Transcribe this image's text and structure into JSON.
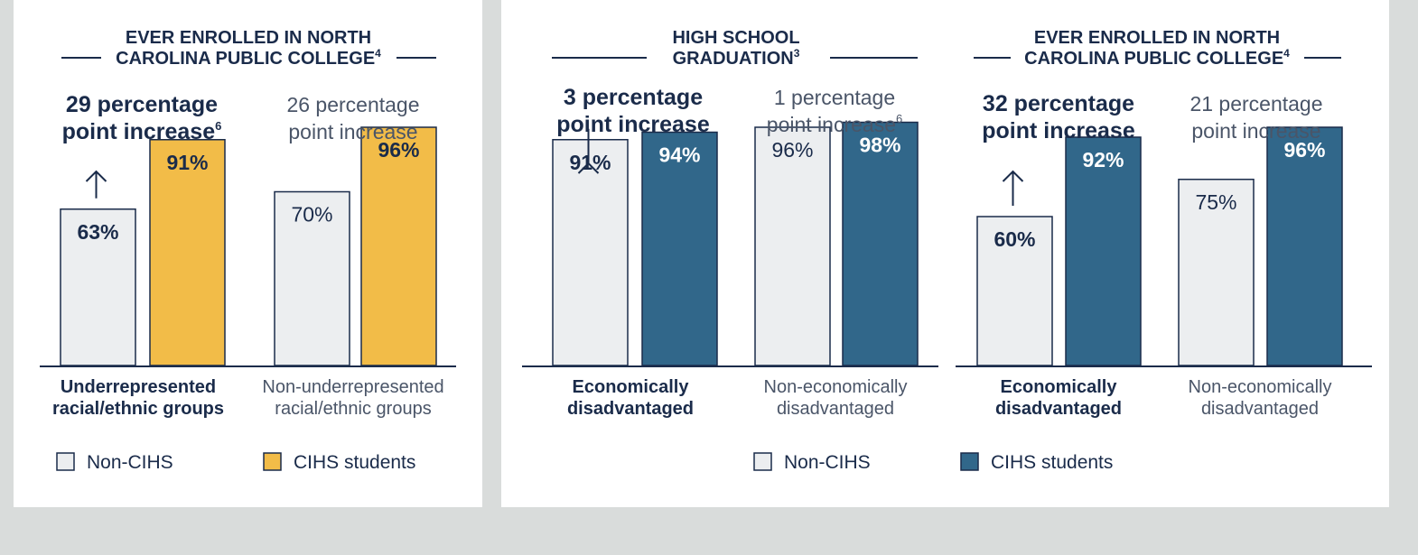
{
  "colors": {
    "navy": "#1a2b4a",
    "gray_text": "#4a5568",
    "light_bar": "#eceef0",
    "gold": "#f2bc48",
    "teal": "#31678a",
    "background": "#d9dcdb",
    "panel": "#ffffff"
  },
  "chart_data": [
    {
      "type": "bar",
      "title": [
        "EVER ENROLLED IN NORTH",
        "CAROLINA PUBLIC COLLEGE"
      ],
      "title_footnote": "4",
      "categories": [
        [
          "Underrepresented",
          "racial/ethnic groups"
        ],
        [
          "Non-underrepresented",
          "racial/ethnic groups"
        ]
      ],
      "category_bold": [
        true,
        false
      ],
      "series": [
        {
          "name": "Non-CIHS",
          "values": [
            63,
            70
          ]
        },
        {
          "name": "CIHS students",
          "values": [
            91,
            96
          ]
        }
      ],
      "value_labels": [
        [
          "63%",
          "70%"
        ],
        [
          "91%",
          "96%"
        ]
      ],
      "annotations": [
        {
          "lines": [
            "29 percentage",
            "point increase"
          ],
          "footnote": "6",
          "bold": true,
          "arrow": true
        },
        {
          "lines": [
            "26 percentage",
            "point increase"
          ],
          "footnote": "",
          "bold": false,
          "arrow": false
        }
      ],
      "legend": [
        {
          "label": "Non-CIHS",
          "color": "#eceef0"
        },
        {
          "label": "CIHS students",
          "color": "#f2bc48"
        }
      ]
    },
    {
      "type": "bar",
      "title": [
        "HIGH SCHOOL",
        "GRADUATION"
      ],
      "title_footnote": "3",
      "categories": [
        [
          "Economically",
          "disadvantaged"
        ],
        [
          "Non-economically",
          "disadvantaged"
        ]
      ],
      "category_bold": [
        true,
        false
      ],
      "series": [
        {
          "name": "Non-CIHS",
          "values": [
            91,
            96
          ]
        },
        {
          "name": "CIHS students",
          "values": [
            94,
            98
          ]
        }
      ],
      "value_labels": [
        [
          "91%",
          "96%"
        ],
        [
          "94%",
          "98%"
        ]
      ],
      "annotations": [
        {
          "lines": [
            "3 percentage",
            "point increase"
          ],
          "footnote": "",
          "bold": true,
          "arrow": true
        },
        {
          "lines": [
            "1 percentage",
            "point increase"
          ],
          "footnote": "6",
          "bold": false,
          "arrow": false
        }
      ]
    },
    {
      "type": "bar",
      "title": [
        "EVER ENROLLED IN NORTH",
        "CAROLINA PUBLIC COLLEGE"
      ],
      "title_footnote": "4",
      "categories": [
        [
          "Economically",
          "disadvantaged"
        ],
        [
          "Non-economically",
          "disadvantaged"
        ]
      ],
      "category_bold": [
        true,
        false
      ],
      "series": [
        {
          "name": "Non-CIHS",
          "values": [
            60,
            75
          ]
        },
        {
          "name": "CIHS students",
          "values": [
            92,
            96
          ]
        }
      ],
      "value_labels": [
        [
          "60%",
          "75%"
        ],
        [
          "92%",
          "96%"
        ]
      ],
      "annotations": [
        {
          "lines": [
            "32 percentage",
            "point increase"
          ],
          "footnote": "",
          "bold": true,
          "arrow": true
        },
        {
          "lines": [
            "21 percentage",
            "point increase"
          ],
          "footnote": "",
          "bold": false,
          "arrow": false
        }
      ]
    }
  ],
  "shared_legend": [
    {
      "label": "Non-CIHS",
      "color": "#eceef0"
    },
    {
      "label": "CIHS students",
      "color": "#31678a"
    }
  ]
}
